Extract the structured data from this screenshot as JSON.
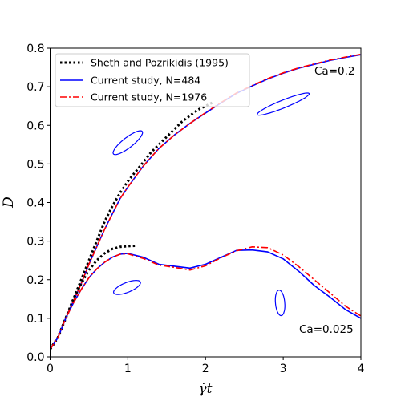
{
  "chart_data": {
    "type": "line",
    "xlabel": "γ̇t",
    "ylabel": "D",
    "xlim": [
      0,
      4
    ],
    "ylim": [
      0,
      0.8
    ],
    "xticks": [
      0,
      1,
      2,
      3,
      4
    ],
    "yticks": [
      0.0,
      0.1,
      0.2,
      0.3,
      0.4,
      0.5,
      0.6,
      0.7,
      0.8
    ],
    "ytick_labels": [
      "0.0",
      "0.1",
      "0.2",
      "0.3",
      "0.4",
      "0.5",
      "0.6",
      "0.7",
      "0.8"
    ],
    "grid": false,
    "legend_position": "top-left",
    "legend": [
      {
        "name": "Sheth and Pozrikidis (1995)",
        "color": "#000000",
        "style": "dotted"
      },
      {
        "name": "Current study, N=484",
        "color": "#0000ff",
        "style": "solid"
      },
      {
        "name": "Current study, N=1976",
        "color": "#ff0000",
        "style": "dashdot"
      }
    ],
    "annotations": [
      {
        "text": "Ca=0.2",
        "x": 3.72,
        "y": 0.735
      },
      {
        "text": "Ca=0.025",
        "x": 3.6,
        "y": 0.065
      }
    ],
    "series": [
      {
        "name": "Sheth and Pozrikidis (1995)",
        "group": "Ca=0.2",
        "color": "#000000",
        "style": "dotted",
        "x": [
          0,
          0.1,
          0.2,
          0.3,
          0.4,
          0.5,
          0.6,
          0.7,
          0.8,
          0.9,
          1.0,
          1.1,
          1.2,
          1.3,
          1.4,
          1.5,
          1.6,
          1.7,
          1.8,
          1.9,
          2.0,
          2.1
        ],
        "y": [
          0.02,
          0.05,
          0.1,
          0.15,
          0.2,
          0.25,
          0.3,
          0.35,
          0.39,
          0.425,
          0.455,
          0.48,
          0.505,
          0.53,
          0.55,
          0.57,
          0.59,
          0.61,
          0.625,
          0.64,
          0.65,
          0.66
        ]
      },
      {
        "name": "Current study, N=484",
        "group": "Ca=0.2",
        "color": "#0000ff",
        "style": "solid",
        "x": [
          0,
          0.1,
          0.2,
          0.3,
          0.4,
          0.5,
          0.6,
          0.7,
          0.8,
          0.9,
          1.0,
          1.2,
          1.4,
          1.6,
          1.8,
          2.0,
          2.2,
          2.4,
          2.6,
          2.8,
          3.0,
          3.2,
          3.4,
          3.6,
          3.8,
          4.0
        ],
        "y": [
          0.02,
          0.05,
          0.1,
          0.145,
          0.19,
          0.24,
          0.285,
          0.33,
          0.37,
          0.41,
          0.44,
          0.495,
          0.54,
          0.575,
          0.605,
          0.632,
          0.658,
          0.683,
          0.702,
          0.72,
          0.735,
          0.748,
          0.758,
          0.768,
          0.776,
          0.783
        ]
      },
      {
        "name": "Current study, N=1976",
        "group": "Ca=0.2",
        "color": "#ff0000",
        "style": "dashdot",
        "x": [
          0,
          0.1,
          0.2,
          0.3,
          0.4,
          0.5,
          0.6,
          0.7,
          0.8,
          0.9,
          1.0,
          1.2,
          1.4,
          1.6,
          1.8,
          2.0,
          2.2,
          2.4,
          2.6,
          2.8,
          3.0,
          3.2,
          3.4,
          3.6,
          3.8,
          4.0
        ],
        "y": [
          0.02,
          0.05,
          0.1,
          0.145,
          0.19,
          0.24,
          0.285,
          0.33,
          0.37,
          0.41,
          0.44,
          0.495,
          0.54,
          0.575,
          0.605,
          0.633,
          0.659,
          0.684,
          0.703,
          0.721,
          0.736,
          0.749,
          0.759,
          0.769,
          0.777,
          0.784
        ]
      },
      {
        "name": "Sheth and Pozrikidis (1995)",
        "group": "Ca=0.025",
        "color": "#000000",
        "style": "dotted",
        "x": [
          0,
          0.1,
          0.2,
          0.3,
          0.4,
          0.5,
          0.6,
          0.7,
          0.8,
          0.9,
          1.0,
          1.1
        ],
        "y": [
          0.02,
          0.05,
          0.1,
          0.15,
          0.19,
          0.225,
          0.25,
          0.268,
          0.28,
          0.285,
          0.287,
          0.288
        ]
      },
      {
        "name": "Current study, N=484",
        "group": "Ca=0.025",
        "color": "#0000ff",
        "style": "solid",
        "x": [
          0,
          0.1,
          0.2,
          0.3,
          0.4,
          0.5,
          0.6,
          0.7,
          0.8,
          0.9,
          1.0,
          1.2,
          1.4,
          1.6,
          1.8,
          2.0,
          2.2,
          2.4,
          2.6,
          2.8,
          3.0,
          3.2,
          3.4,
          3.6,
          3.8,
          4.0
        ],
        "y": [
          0.02,
          0.05,
          0.1,
          0.14,
          0.175,
          0.205,
          0.228,
          0.245,
          0.258,
          0.266,
          0.268,
          0.258,
          0.24,
          0.235,
          0.23,
          0.24,
          0.258,
          0.276,
          0.277,
          0.272,
          0.254,
          0.222,
          0.185,
          0.155,
          0.123,
          0.1
        ]
      },
      {
        "name": "Current study, N=1976",
        "group": "Ca=0.025",
        "color": "#ff0000",
        "style": "dashdot",
        "x": [
          0,
          0.1,
          0.2,
          0.3,
          0.4,
          0.5,
          0.6,
          0.7,
          0.8,
          0.9,
          1.0,
          1.2,
          1.4,
          1.6,
          1.8,
          2.0,
          2.2,
          2.4,
          2.6,
          2.8,
          3.0,
          3.2,
          3.4,
          3.6,
          3.8,
          4.0
        ],
        "y": [
          0.02,
          0.05,
          0.1,
          0.14,
          0.175,
          0.205,
          0.228,
          0.245,
          0.258,
          0.266,
          0.267,
          0.255,
          0.238,
          0.232,
          0.225,
          0.236,
          0.257,
          0.275,
          0.285,
          0.283,
          0.264,
          0.234,
          0.2,
          0.166,
          0.132,
          0.106
        ]
      }
    ],
    "droplet_shapes": [
      {
        "name": "drop-ca02-early",
        "cx": 1.0,
        "cy": 0.555,
        "rx": 0.47,
        "ry": 0.13,
        "angle_deg": -38
      },
      {
        "name": "drop-ca02-late",
        "cx": 3.0,
        "cy": 0.655,
        "rx": 0.72,
        "ry": 0.1,
        "angle_deg": -22
      },
      {
        "name": "drop-ca025-early",
        "cx": 0.99,
        "cy": 0.18,
        "rx": 0.37,
        "ry": 0.125,
        "angle_deg": -22
      },
      {
        "name": "drop-ca025-late",
        "cx": 2.96,
        "cy": 0.14,
        "rx": 0.33,
        "ry": 0.12,
        "angle_deg": 85
      }
    ]
  }
}
